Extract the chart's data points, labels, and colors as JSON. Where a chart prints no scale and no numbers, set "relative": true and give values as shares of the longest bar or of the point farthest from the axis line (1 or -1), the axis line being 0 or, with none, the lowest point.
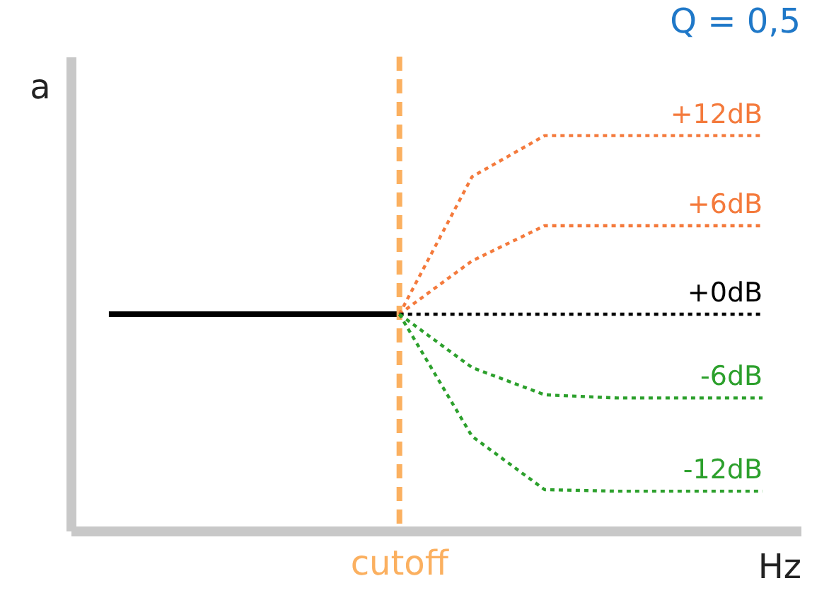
{
  "chart_data": {
    "type": "line",
    "title": "Q = 0,5",
    "xlabel": "Hz",
    "ylabel": "a",
    "relative": true,
    "categories": [
      null,
      null,
      null,
      null,
      null,
      null,
      null,
      null,
      null,
      null
    ],
    "ref_lines": [
      {
        "axis": "x",
        "label": "cutoff",
        "color": "#fbb060",
        "line_style": "dashed"
      }
    ],
    "series": [
      {
        "color": "#000000",
        "line_style": "solid",
        "values": [
          0.548,
          0.548,
          0.548,
          0.548,
          0.548,
          null,
          null,
          null,
          null,
          null
        ]
      },
      {
        "name": "+12dB",
        "color": "#f47a3c",
        "line_style": "dotted",
        "values": [
          null,
          null,
          null,
          null,
          0.548,
          0.896,
          1,
          1,
          1,
          1
        ]
      },
      {
        "name": "+6dB",
        "color": "#f47a3c",
        "line_style": "dotted",
        "values": [
          null,
          null,
          null,
          null,
          0.548,
          0.683,
          0.772,
          0.772,
          0.772,
          0.772
        ]
      },
      {
        "name": "+0dB",
        "color": "#000000",
        "line_style": "dotted",
        "values": [
          null,
          null,
          null,
          null,
          0.548,
          0.548,
          0.548,
          0.548,
          0.548,
          0.548
        ]
      },
      {
        "name": "-6dB",
        "color": "#2ca02c",
        "line_style": "dotted",
        "values": [
          null,
          null,
          null,
          null,
          0.548,
          0.413,
          0.344,
          0.336,
          0.336,
          0.336
        ]
      },
      {
        "name": "-12dB",
        "color": "#2ca02c",
        "line_style": "dotted",
        "values": [
          null,
          null,
          null,
          null,
          0.548,
          0.239,
          0.104,
          0.1,
          0.1,
          0.1
        ]
      }
    ]
  }
}
